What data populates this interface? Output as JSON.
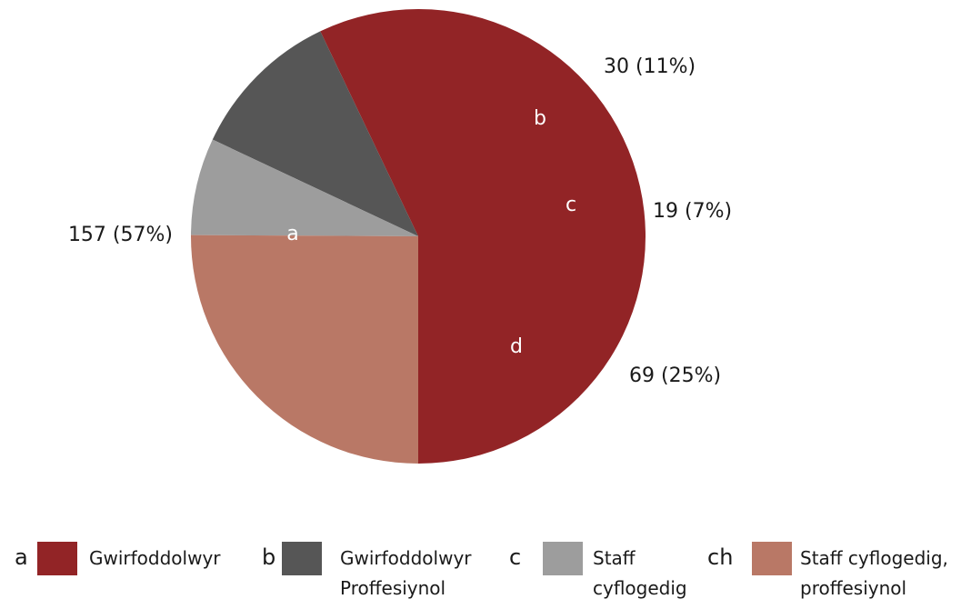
{
  "chart_data": {
    "type": "pie",
    "slices": [
      {
        "key": "a",
        "legend_key": "a",
        "value": 157,
        "percent": 57,
        "label": "157 (57%)",
        "legend": [
          "Gwirfoddolwyr"
        ],
        "color": "#922426"
      },
      {
        "key": "b",
        "legend_key": "b",
        "value": 30,
        "percent": 11,
        "label": "30 (11%)",
        "legend": [
          "Gwirfoddolwyr",
          "Proffesiynol"
        ],
        "color": "#565656"
      },
      {
        "key": "c",
        "legend_key": "c",
        "value": 19,
        "percent": 7,
        "label": "19 (7%)",
        "legend": [
          "Staff",
          "cyflogedig"
        ],
        "color": "#9d9d9d"
      },
      {
        "key": "d",
        "legend_key": "ch",
        "value": 69,
        "percent": 25,
        "label": "69 (25%)",
        "legend": [
          "Staff cyflogedig,",
          "proffesiynol"
        ],
        "color": "#b97866"
      }
    ],
    "legend_placement": "bottom"
  }
}
